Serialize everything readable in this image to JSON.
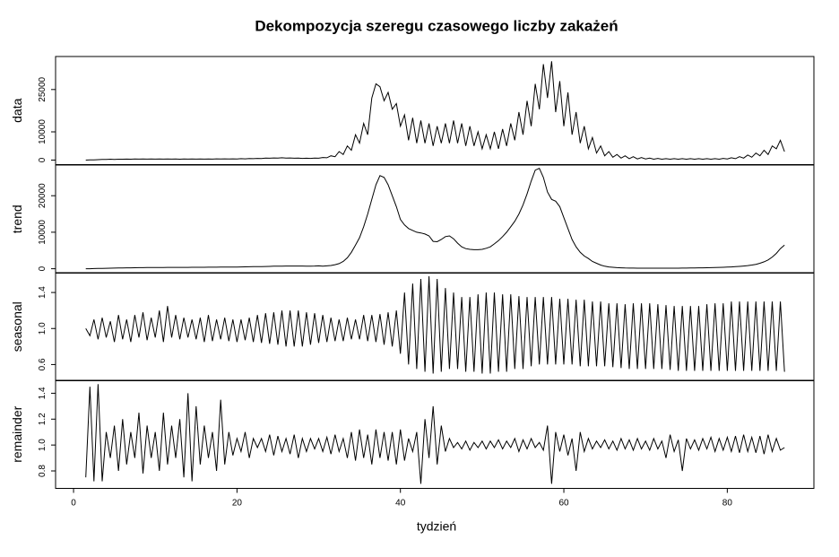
{
  "chart_data": {
    "type": "decomposition",
    "title": "Dekompozycja szeregu czasowego liczby zakażeń",
    "xlabel": "tydzień",
    "xlim": [
      -2.2,
      90.6
    ],
    "xticks": [
      0,
      20,
      40,
      60,
      80
    ],
    "x": [
      1.5,
      2,
      2.5,
      3,
      3.5,
      4,
      4.5,
      5,
      5.5,
      6,
      6.5,
      7,
      7.5,
      8,
      8.5,
      9,
      9.5,
      10,
      10.5,
      11,
      11.5,
      12,
      12.5,
      13,
      13.5,
      14,
      14.5,
      15,
      15.5,
      16,
      16.5,
      17,
      17.5,
      18,
      18.5,
      19,
      19.5,
      20,
      20.5,
      21,
      21.5,
      22,
      22.5,
      23,
      23.5,
      24,
      24.5,
      25,
      25.5,
      26,
      26.5,
      27,
      27.5,
      28,
      28.5,
      29,
      29.5,
      30,
      30.5,
      31,
      31.5,
      32,
      32.5,
      33,
      33.5,
      34,
      34.5,
      35,
      35.5,
      36,
      36.5,
      37,
      37.5,
      38,
      38.5,
      39,
      39.5,
      40,
      40.5,
      41,
      41.5,
      42,
      42.5,
      43,
      43.5,
      44,
      44.5,
      45,
      45.5,
      46,
      46.5,
      47,
      47.5,
      48,
      48.5,
      49,
      49.5,
      50,
      50.5,
      51,
      51.5,
      52,
      52.5,
      53,
      53.5,
      54,
      54.5,
      55,
      55.5,
      56,
      56.5,
      57,
      57.5,
      58,
      58.5,
      59,
      59.5,
      60,
      60.5,
      61,
      61.5,
      62,
      62.5,
      63,
      63.5,
      64,
      64.5,
      65,
      65.5,
      66,
      66.5,
      67,
      67.5,
      68,
      68.5,
      69,
      69.5,
      70,
      70.5,
      71,
      71.5,
      72,
      72.5,
      73,
      73.5,
      74,
      74.5,
      75,
      75.5,
      76,
      76.5,
      77,
      77.5,
      78,
      78.5,
      79,
      79.5,
      80,
      80.5,
      81,
      81.5,
      82,
      82.5,
      83,
      83.5,
      84,
      84.5,
      85,
      85.5,
      86,
      86.5,
      87
    ],
    "panels": [
      {
        "ylabel": "data",
        "ylim": [
          -1600,
          36700
        ],
        "yticks": [
          0,
          10000,
          25000
        ],
        "values": [
          0,
          50,
          100,
          150,
          200,
          250,
          300,
          250,
          300,
          300,
          350,
          300,
          400,
          350,
          400,
          350,
          400,
          350,
          400,
          350,
          400,
          350,
          400,
          300,
          400,
          350,
          400,
          350,
          400,
          350,
          400,
          350,
          450,
          400,
          450,
          400,
          450,
          400,
          500,
          450,
          550,
          500,
          600,
          550,
          700,
          650,
          750,
          700,
          800,
          700,
          750,
          650,
          700,
          600,
          650,
          600,
          700,
          650,
          900,
          800,
          1500,
          1200,
          3000,
          2000,
          5000,
          3500,
          9000,
          6000,
          13000,
          9000,
          22000,
          27000,
          26000,
          21000,
          24000,
          18000,
          20000,
          12000,
          16000,
          7000,
          15000,
          6000,
          14000,
          6000,
          13000,
          5000,
          12000,
          6000,
          13000,
          6000,
          14000,
          6000,
          13000,
          5000,
          12000,
          5000,
          10000,
          4000,
          9000,
          4000,
          10000,
          4000,
          11000,
          5000,
          13000,
          7000,
          17000,
          9000,
          21000,
          12000,
          27000,
          18000,
          34000,
          22000,
          35000,
          17000,
          28000,
          12000,
          24000,
          9000,
          17000,
          6000,
          12000,
          4000,
          8000,
          2500,
          5000,
          1500,
          3000,
          1000,
          2000,
          700,
          1500,
          500,
          1200,
          400,
          900,
          400,
          700,
          300,
          600,
          300,
          500,
          300,
          500,
          300,
          500,
          300,
          500,
          300,
          500,
          300,
          500,
          300,
          500,
          300,
          600,
          400,
          800,
          500,
          1200,
          700,
          1800,
          1000,
          2500,
          1500,
          3500,
          2000,
          5000,
          4000,
          7000,
          3000
        ]
      },
      {
        "ylabel": "trend",
        "ylim": [
          -1200,
          28400
        ],
        "yticks": [
          0,
          10000,
          20000
        ],
        "values": [
          0,
          0,
          50,
          80,
          100,
          120,
          150,
          170,
          200,
          220,
          240,
          260,
          280,
          300,
          300,
          320,
          330,
          340,
          350,
          350,
          360,
          360,
          370,
          370,
          380,
          380,
          390,
          390,
          400,
          400,
          410,
          420,
          430,
          440,
          450,
          460,
          470,
          480,
          500,
          520,
          540,
          560,
          580,
          600,
          620,
          650,
          680,
          700,
          720,
          740,
          750,
          750,
          740,
          730,
          720,
          720,
          740,
          780,
          700,
          800,
          900,
          1100,
          1400,
          2000,
          3000,
          4500,
          6500,
          8500,
          11500,
          15000,
          19000,
          23000,
          25500,
          25000,
          23000,
          20000,
          17000,
          13500,
          12000,
          11000,
          10500,
          10000,
          9800,
          9500,
          9000,
          7500,
          7400,
          8000,
          8800,
          9000,
          8200,
          7000,
          6000,
          5500,
          5300,
          5200,
          5200,
          5300,
          5600,
          6000,
          6800,
          7700,
          8800,
          10000,
          11500,
          13000,
          15000,
          17500,
          20500,
          24000,
          27000,
          27500,
          25000,
          21000,
          19000,
          18500,
          17000,
          14000,
          11000,
          8000,
          6000,
          4500,
          3500,
          2800,
          2000,
          1500,
          1000,
          700,
          500,
          400,
          300,
          250,
          200,
          180,
          170,
          160,
          150,
          150,
          150,
          150,
          150,
          150,
          150,
          150,
          150,
          160,
          170,
          180,
          200,
          220,
          240,
          260,
          280,
          300,
          330,
          360,
          400,
          440,
          500,
          560,
          640,
          740,
          860,
          1000,
          1200,
          1500,
          1900,
          2400,
          3200,
          4200,
          5500,
          6500
        ]
      },
      {
        "ylabel": "seasonal",
        "ylim": [
          0.42,
          1.62
        ],
        "yticks": [
          0.6,
          {
            "value": 1,
            "label": "1.0"
          },
          1.4
        ],
        "values": [
          1.0,
          0.92,
          1.1,
          0.88,
          1.12,
          0.9,
          1.08,
          0.85,
          1.15,
          0.88,
          1.1,
          0.85,
          1.15,
          0.9,
          1.18,
          0.87,
          1.12,
          0.9,
          1.2,
          0.85,
          1.25,
          0.9,
          1.15,
          0.88,
          1.12,
          0.9,
          1.1,
          0.88,
          1.12,
          0.85,
          1.15,
          0.86,
          1.1,
          0.88,
          1.12,
          0.86,
          1.1,
          0.85,
          1.1,
          0.87,
          1.12,
          0.85,
          1.15,
          0.84,
          1.17,
          0.83,
          1.18,
          0.82,
          1.2,
          0.8,
          1.2,
          0.8,
          1.2,
          0.8,
          1.18,
          0.82,
          1.17,
          0.84,
          1.15,
          0.85,
          1.12,
          0.86,
          1.1,
          0.86,
          1.12,
          0.88,
          1.1,
          0.88,
          1.15,
          0.86,
          1.15,
          0.85,
          1.16,
          0.82,
          1.18,
          0.8,
          1.2,
          0.72,
          1.4,
          0.6,
          1.5,
          0.55,
          1.55,
          0.52,
          1.58,
          0.5,
          1.55,
          0.52,
          1.45,
          0.55,
          1.4,
          0.55,
          1.35,
          0.52,
          1.35,
          0.52,
          1.38,
          0.5,
          1.4,
          0.5,
          1.4,
          0.52,
          1.38,
          0.52,
          1.38,
          0.55,
          1.36,
          0.55,
          1.35,
          0.58,
          1.35,
          0.6,
          1.35,
          0.6,
          1.35,
          0.6,
          1.33,
          0.6,
          1.33,
          0.6,
          1.32,
          0.58,
          1.32,
          0.58,
          1.3,
          0.58,
          1.3,
          0.58,
          1.28,
          0.57,
          1.28,
          0.56,
          1.27,
          0.55,
          1.28,
          0.55,
          1.28,
          0.55,
          1.28,
          0.55,
          1.27,
          0.55,
          1.26,
          0.54,
          1.25,
          0.53,
          1.25,
          0.53,
          1.25,
          0.53,
          1.25,
          0.53,
          1.27,
          0.53,
          1.28,
          0.53,
          1.28,
          0.53,
          1.3,
          0.53,
          1.3,
          0.53,
          1.3,
          0.53,
          1.3,
          0.53,
          1.3,
          0.53,
          1.3,
          0.53,
          1.3,
          0.52
        ]
      },
      {
        "ylabel": "remainder",
        "ylim": [
          0.665,
          1.5
        ],
        "yticks": [
          0.8,
          {
            "value": 1,
            "label": "1.0"
          },
          1.2,
          1.4
        ],
        "values": [
          0.75,
          1.45,
          0.72,
          1.47,
          0.72,
          1.1,
          0.9,
          1.15,
          0.8,
          1.2,
          0.85,
          1.1,
          0.9,
          1.25,
          0.78,
          1.15,
          0.9,
          1.1,
          0.8,
          1.25,
          0.85,
          1.15,
          0.9,
          1.2,
          0.75,
          1.4,
          0.72,
          1.3,
          0.85,
          1.15,
          0.9,
          1.1,
          0.8,
          1.35,
          0.85,
          1.1,
          0.92,
          1.05,
          0.95,
          1.1,
          0.9,
          1.05,
          0.98,
          1.05,
          0.95,
          1.08,
          0.92,
          1.07,
          0.95,
          1.05,
          0.93,
          1.08,
          0.9,
          1.05,
          0.95,
          1.05,
          0.97,
          1.05,
          0.95,
          1.06,
          0.93,
          1.08,
          0.95,
          1.05,
          0.9,
          1.1,
          0.88,
          1.12,
          0.9,
          1.08,
          0.85,
          1.12,
          0.9,
          1.1,
          0.88,
          1.1,
          0.85,
          1.12,
          0.88,
          1.05,
          0.95,
          1.1,
          0.7,
          1.2,
          0.9,
          1.3,
          0.85,
          1.15,
          0.95,
          1.05,
          0.98,
          1.02,
          0.97,
          1.03,
          0.96,
          1.02,
          0.98,
          1.03,
          0.97,
          1.03,
          0.98,
          1.04,
          0.97,
          1.03,
          0.98,
          1.05,
          0.95,
          1.04,
          0.97,
          1.05,
          0.98,
          1.02,
          0.96,
          1.15,
          0.7,
          1.1,
          0.95,
          1.08,
          0.92,
          1.05,
          0.8,
          1.1,
          0.95,
          1.05,
          0.97,
          1.03,
          0.98,
          1.04,
          0.97,
          1.03,
          0.96,
          1.05,
          0.97,
          1.04,
          0.96,
          1.05,
          0.97,
          1.03,
          0.96,
          1.05,
          0.97,
          1.03,
          0.9,
          1.08,
          0.95,
          1.04,
          0.8,
          1.05,
          0.97,
          1.04,
          0.96,
          1.05,
          0.97,
          1.06,
          0.95,
          1.05,
          0.96,
          1.06,
          0.95,
          1.07,
          0.94,
          1.08,
          0.95,
          1.06,
          0.94,
          1.07,
          0.93,
          1.08,
          0.95,
          1.05,
          0.96,
          0.98
        ]
      }
    ]
  }
}
